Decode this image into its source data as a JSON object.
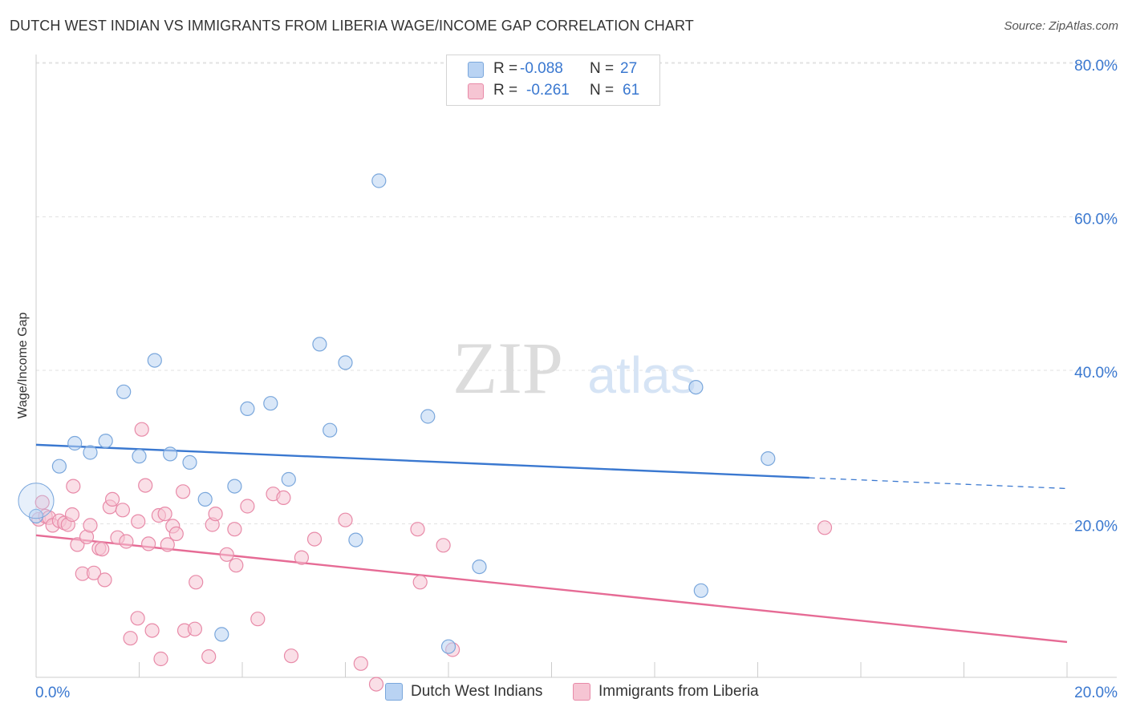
{
  "header": {
    "title": "DUTCH WEST INDIAN VS IMMIGRANTS FROM LIBERIA WAGE/INCOME GAP CORRELATION CHART",
    "source": "Source: ZipAtlas.com"
  },
  "legend": {
    "r_label": "R =",
    "n_label": "N =",
    "blue": {
      "r": "-0.088",
      "n": "27"
    },
    "pink": {
      "r": "-0.261",
      "n": "61"
    }
  },
  "watermark": {
    "zip": "ZIP",
    "atlas": "atlas"
  },
  "colors": {
    "blue_fill": "#b9d3f3",
    "blue_stroke": "#7aa7dc",
    "blue_line": "#3a78d0",
    "pink_fill": "#f6c5d3",
    "pink_stroke": "#e88aa8",
    "pink_line": "#e66b95",
    "axis_label": "#3a78d0"
  },
  "chart_data": {
    "type": "scatter",
    "title": "DUTCH WEST INDIAN VS IMMIGRANTS FROM LIBERIA WAGE/INCOME GAP CORRELATION CHART",
    "xlabel": "",
    "ylabel": "Wage/Income Gap",
    "xlim": [
      0,
      20
    ],
    "ylim": [
      0,
      80
    ],
    "x_tick_labels": [
      "0.0%",
      "20.0%"
    ],
    "y_ticks": [
      {
        "value": 20,
        "label": "20.0%"
      },
      {
        "value": 40,
        "label": "40.0%"
      },
      {
        "value": 60,
        "label": "60.0%"
      },
      {
        "value": 80,
        "label": "80.0%"
      }
    ],
    "series": [
      {
        "name": "Dutch West Indians",
        "color": "#3a78d0",
        "trend": {
          "x0": 0,
          "y0": 30.3,
          "x1": 15.0,
          "y1": 26.0,
          "x_end": 20.0,
          "y_end": 24.6
        },
        "points": [
          [
            0.0,
            21.0
          ],
          [
            0.45,
            27.5
          ],
          [
            0.75,
            30.5
          ],
          [
            1.05,
            29.3
          ],
          [
            1.35,
            30.8
          ],
          [
            1.7,
            37.2
          ],
          [
            2.0,
            28.8
          ],
          [
            2.3,
            41.3
          ],
          [
            2.6,
            29.1
          ],
          [
            2.98,
            28.0
          ],
          [
            3.28,
            23.2
          ],
          [
            3.6,
            5.6
          ],
          [
            3.85,
            24.9
          ],
          [
            4.1,
            35.0
          ],
          [
            4.55,
            35.7
          ],
          [
            4.9,
            25.8
          ],
          [
            5.5,
            43.4
          ],
          [
            5.7,
            32.2
          ],
          [
            6.0,
            41.0
          ],
          [
            6.2,
            17.9
          ],
          [
            6.65,
            64.7
          ],
          [
            7.6,
            34.0
          ],
          [
            8.0,
            4.0
          ],
          [
            8.6,
            14.4
          ],
          [
            12.9,
            11.3
          ],
          [
            12.8,
            37.8
          ],
          [
            14.2,
            28.5
          ]
        ]
      },
      {
        "name": "Immigrants from Liberia",
        "color": "#e66b95",
        "trend": {
          "x0": 0,
          "y0": 18.5,
          "x1": 20.0,
          "y1": 4.6
        },
        "points": [
          [
            0.05,
            20.6
          ],
          [
            0.12,
            22.8
          ],
          [
            0.18,
            21.0
          ],
          [
            0.25,
            20.8
          ],
          [
            0.32,
            19.8
          ],
          [
            0.45,
            20.4
          ],
          [
            0.55,
            20.1
          ],
          [
            0.62,
            19.9
          ],
          [
            0.7,
            21.2
          ],
          [
            0.72,
            24.9
          ],
          [
            0.8,
            17.3
          ],
          [
            0.9,
            13.5
          ],
          [
            0.98,
            18.3
          ],
          [
            1.05,
            19.8
          ],
          [
            1.12,
            13.6
          ],
          [
            1.22,
            16.8
          ],
          [
            1.28,
            16.7
          ],
          [
            1.33,
            12.7
          ],
          [
            1.43,
            22.2
          ],
          [
            1.48,
            23.2
          ],
          [
            1.58,
            18.2
          ],
          [
            1.68,
            21.8
          ],
          [
            1.75,
            17.7
          ],
          [
            1.83,
            5.1
          ],
          [
            1.97,
            7.7
          ],
          [
            1.98,
            20.3
          ],
          [
            2.05,
            32.3
          ],
          [
            2.12,
            25.0
          ],
          [
            2.18,
            17.4
          ],
          [
            2.25,
            6.1
          ],
          [
            2.38,
            21.1
          ],
          [
            2.42,
            2.4
          ],
          [
            2.5,
            21.3
          ],
          [
            2.55,
            17.3
          ],
          [
            2.65,
            19.7
          ],
          [
            2.72,
            18.7
          ],
          [
            2.85,
            24.2
          ],
          [
            2.88,
            6.1
          ],
          [
            3.08,
            6.3
          ],
          [
            3.1,
            12.4
          ],
          [
            3.35,
            2.7
          ],
          [
            3.42,
            19.9
          ],
          [
            3.48,
            21.3
          ],
          [
            3.7,
            16.0
          ],
          [
            3.85,
            19.3
          ],
          [
            3.88,
            14.6
          ],
          [
            4.1,
            22.3
          ],
          [
            4.3,
            7.6
          ],
          [
            4.6,
            23.9
          ],
          [
            4.8,
            23.4
          ],
          [
            4.95,
            2.8
          ],
          [
            5.15,
            15.6
          ],
          [
            5.4,
            18.0
          ],
          [
            6.0,
            20.5
          ],
          [
            6.3,
            1.8
          ],
          [
            6.6,
            -0.9
          ],
          [
            7.4,
            19.3
          ],
          [
            7.45,
            12.4
          ],
          [
            7.9,
            17.2
          ],
          [
            8.08,
            3.6
          ],
          [
            15.3,
            19.5
          ]
        ]
      }
    ]
  }
}
